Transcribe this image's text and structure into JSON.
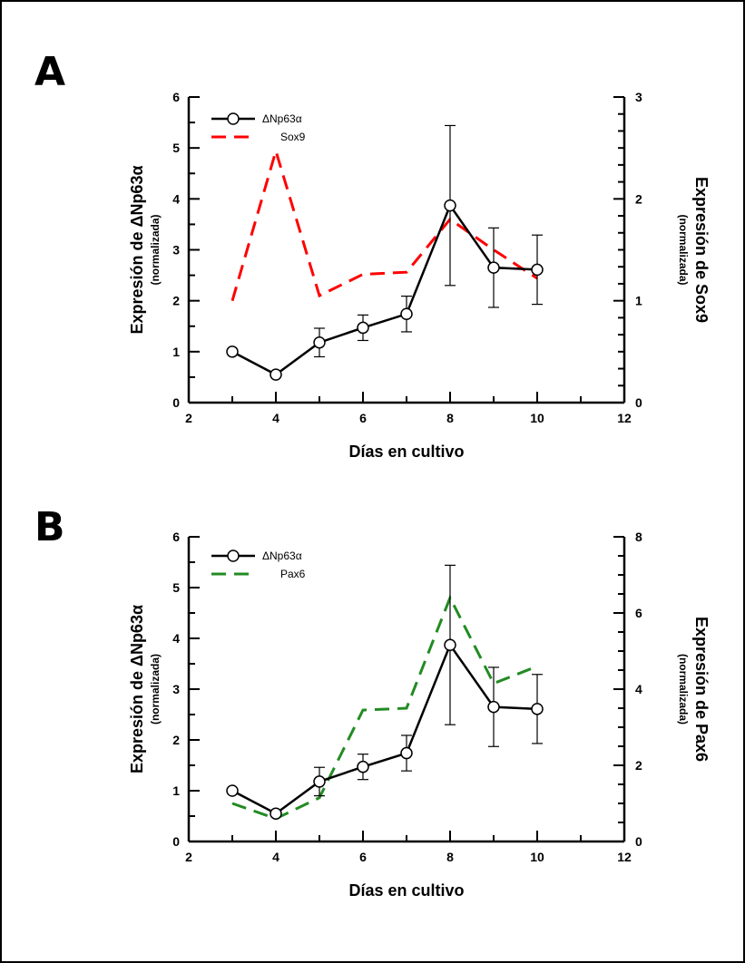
{
  "panels": [
    {
      "letter": "A",
      "left_axis_title": "Expresión de ΔNp63α",
      "left_axis_subtitle": "(normalizada)",
      "right_axis_title": "Expresión de Sox9",
      "right_axis_subtitle": "(normalizada)",
      "x_axis_title": "Días en cultivo",
      "legend": [
        "ΔNp63α",
        "Sox9"
      ]
    },
    {
      "letter": "B",
      "left_axis_title": "Expresión de ΔNp63α",
      "left_axis_subtitle": "(normalizada)",
      "right_axis_title": "Expresión de Pax6",
      "right_axis_subtitle": "(normalizada)",
      "x_axis_title": "Días en cultivo",
      "legend": [
        "ΔNp63α",
        "Pax6"
      ]
    }
  ],
  "chart_data": [
    {
      "type": "line",
      "panel": "A",
      "xlabel": "Días en cultivo",
      "ylabel": "Expresión de ΔNp63α (normalizada)",
      "y2label": "Expresión de Sox9 (normalizada)",
      "xlim": [
        2,
        12
      ],
      "ylim": [
        0,
        6
      ],
      "y2lim": [
        0,
        3
      ],
      "xticks": [
        2,
        4,
        6,
        8,
        10,
        12
      ],
      "yticks": [
        0,
        1,
        2,
        3,
        4,
        5,
        6
      ],
      "y2ticks": [
        0,
        1,
        2,
        3
      ],
      "grid": false,
      "legend_position": "top-left",
      "series": [
        {
          "name": "ΔNp63α",
          "axis": "left",
          "color": "#000000",
          "style": "solid-circle-markers",
          "x": [
            3,
            4,
            5,
            6,
            7,
            8,
            9,
            10
          ],
          "y": [
            1.0,
            0.55,
            1.18,
            1.47,
            1.74,
            3.87,
            2.65,
            2.61
          ],
          "error": [
            0,
            0,
            0.28,
            0.25,
            0.35,
            1.57,
            0.78,
            0.68
          ]
        },
        {
          "name": "Sox9",
          "axis": "right",
          "color": "#ff0000",
          "style": "dashed",
          "x": [
            3,
            4,
            5,
            6,
            7,
            8,
            9,
            10
          ],
          "y": [
            1.0,
            2.47,
            1.05,
            1.26,
            1.28,
            1.8,
            1.5,
            1.22
          ]
        }
      ]
    },
    {
      "type": "line",
      "panel": "B",
      "xlabel": "Días en cultivo",
      "ylabel": "Expresión de ΔNp63α (normalizada)",
      "y2label": "Expresión de Pax6 (normalizada)",
      "xlim": [
        2,
        12
      ],
      "ylim": [
        0,
        6
      ],
      "y2lim": [
        0,
        8
      ],
      "xticks": [
        2,
        4,
        6,
        8,
        10,
        12
      ],
      "yticks": [
        0,
        1,
        2,
        3,
        4,
        5,
        6
      ],
      "y2ticks": [
        0,
        2,
        4,
        6,
        8
      ],
      "grid": false,
      "legend_position": "top-left",
      "series": [
        {
          "name": "ΔNp63α",
          "axis": "left",
          "color": "#000000",
          "style": "solid-circle-markers",
          "x": [
            3,
            4,
            5,
            6,
            7,
            8,
            9,
            10
          ],
          "y": [
            1.0,
            0.55,
            1.18,
            1.47,
            1.74,
            3.87,
            2.65,
            2.61
          ],
          "error": [
            0,
            0,
            0.28,
            0.25,
            0.35,
            1.57,
            0.78,
            0.68
          ]
        },
        {
          "name": "Pax6",
          "axis": "right",
          "color": "#228b22",
          "style": "dashed",
          "x": [
            3,
            4,
            5,
            6,
            7,
            8,
            9,
            10
          ],
          "y": [
            1.0,
            0.6,
            1.15,
            3.45,
            3.5,
            6.4,
            4.15,
            4.6
          ]
        }
      ]
    }
  ]
}
